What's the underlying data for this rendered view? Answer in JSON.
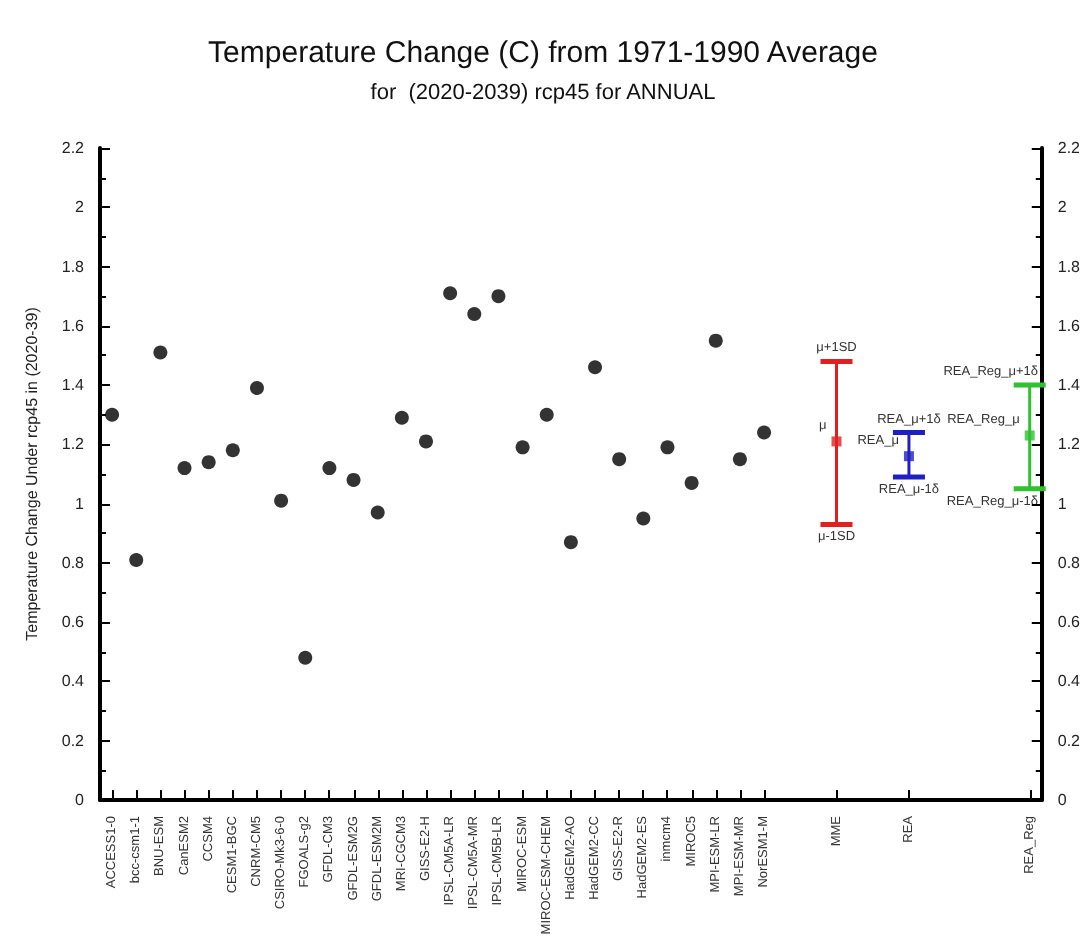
{
  "chart_data": {
    "type": "scatter",
    "title": "Temperature Change (C) from 1971-1990 Average",
    "subtitle": "for  (2020-2039) rcp45 for ANNUAL",
    "ylabel": "Temperature Change Under rcp45 in (2020-39)",
    "categories": [
      "ACCESS1-0",
      "bcc-csm1-1",
      "BNU-ESM",
      "CanESM2",
      "CCSM4",
      "CESM1-BGC",
      "CNRM-CM5",
      "CSIRO-Mk3-6-0",
      "FGOALS-g2",
      "GFDL-CM3",
      "GFDL-ESM2G",
      "GFDL-ESM2M",
      "MRI-CGCM3",
      "GISS-E2-H",
      "IPSL-CM5A-LR",
      "IPSL-CM5A-MR",
      "IPSL-CM5B-LR",
      "MIROC-ESM",
      "MIROC-ESM-CHEM",
      "HadGEM2-AO",
      "HadGEM2-CC",
      "GISS-E2-R",
      "HadGEM2-ES",
      "inmcm4",
      "MIROC5",
      "MPI-ESM-LR",
      "MPI-ESM-MR",
      "NorESM1-M",
      null,
      null,
      "MME",
      null,
      null,
      "REA",
      null,
      null,
      null,
      null,
      "REA_Reg"
    ],
    "series": [
      {
        "color": "#000000",
        "marker": "circle",
        "values": [
          1.3,
          0.81,
          1.51,
          1.12,
          1.14,
          1.18,
          1.39,
          1.01,
          0.48,
          1.12,
          1.08,
          0.97,
          1.29,
          1.21,
          1.71,
          1.64,
          1.7,
          1.19,
          1.3,
          0.87,
          1.46,
          1.15,
          0.95,
          1.19,
          1.07,
          1.55,
          1.15,
          1.24,
          null,
          null,
          null,
          null,
          null,
          null,
          null,
          null,
          null,
          null,
          null
        ]
      },
      {
        "color": "#e02020",
        "marker": "square",
        "values": [
          null,
          null,
          null,
          null,
          null,
          null,
          null,
          null,
          null,
          null,
          null,
          null,
          null,
          null,
          null,
          null,
          null,
          null,
          null,
          null,
          null,
          null,
          null,
          null,
          null,
          null,
          null,
          null,
          null,
          null,
          1.21,
          null,
          null,
          null,
          null,
          null,
          null,
          null,
          null
        ],
        "errors": [
          null,
          null,
          null,
          null,
          null,
          null,
          null,
          null,
          null,
          null,
          null,
          null,
          null,
          null,
          null,
          null,
          null,
          null,
          null,
          null,
          null,
          null,
          null,
          null,
          null,
          null,
          null,
          null,
          null,
          null,
          [
            0.93,
            1.48
          ],
          null,
          null,
          null,
          null,
          null,
          null,
          null,
          null
        ]
      },
      {
        "color": "#2020c0",
        "marker": "square",
        "values": [
          null,
          null,
          null,
          null,
          null,
          null,
          null,
          null,
          null,
          null,
          null,
          null,
          null,
          null,
          null,
          null,
          null,
          null,
          null,
          null,
          null,
          null,
          null,
          null,
          null,
          null,
          null,
          null,
          null,
          null,
          null,
          null,
          null,
          1.16,
          null,
          null,
          null,
          null,
          null
        ],
        "errors": [
          null,
          null,
          null,
          null,
          null,
          null,
          null,
          null,
          null,
          null,
          null,
          null,
          null,
          null,
          null,
          null,
          null,
          null,
          null,
          null,
          null,
          null,
          null,
          null,
          null,
          null,
          null,
          null,
          null,
          null,
          null,
          null,
          null,
          [
            1.09,
            1.24
          ],
          null,
          null,
          null,
          null,
          null
        ]
      },
      {
        "color": "#30c030",
        "marker": "square",
        "values": [
          null,
          null,
          null,
          null,
          null,
          null,
          null,
          null,
          null,
          null,
          null,
          null,
          null,
          null,
          null,
          null,
          null,
          null,
          null,
          null,
          null,
          null,
          null,
          null,
          null,
          null,
          null,
          null,
          null,
          null,
          null,
          null,
          null,
          null,
          null,
          null,
          null,
          null,
          1.23
        ],
        "errors": [
          null,
          null,
          null,
          null,
          null,
          null,
          null,
          null,
          null,
          null,
          null,
          null,
          null,
          null,
          null,
          null,
          null,
          null,
          null,
          null,
          null,
          null,
          null,
          null,
          null,
          null,
          null,
          null,
          null,
          null,
          null,
          null,
          null,
          null,
          null,
          null,
          null,
          null,
          [
            1.05,
            1.4
          ]
        ]
      }
    ],
    "annotations": [
      {
        "text": "μ+1SD",
        "x": "MME",
        "y": 1.48
      },
      {
        "text": "μ",
        "x": "MME",
        "y": 1.21
      },
      {
        "text": "μ-1SD",
        "x": "MME",
        "y": 0.93
      },
      {
        "text": "REA_μ+1δ",
        "x": "REA",
        "y": 1.24
      },
      {
        "text": "REA_μ",
        "x": "REA",
        "y": 1.16
      },
      {
        "text": "REA_μ-1δ",
        "x": "REA",
        "y": 1.09
      },
      {
        "text": "REA_Reg_μ+1δ",
        "x": "REA_Reg",
        "y": 1.4
      },
      {
        "text": "REA_Reg_μ",
        "x": "REA_Reg",
        "y": 1.23
      },
      {
        "text": "REA_Reg_μ-1δ",
        "x": "REA_Reg",
        "y": 1.05
      }
    ],
    "ylim": [
      0,
      2.2
    ],
    "yticks": [
      0,
      0.2,
      0.4,
      0.6,
      0.8,
      1,
      1.2,
      1.4,
      1.6,
      1.8,
      2,
      2.2
    ],
    "y2lim": [
      0,
      2.2
    ],
    "y2ticks": [
      0,
      0.2,
      0.4,
      0.6,
      0.8,
      1,
      1.2,
      1.4,
      1.6,
      1.8,
      2,
      2.2
    ]
  }
}
